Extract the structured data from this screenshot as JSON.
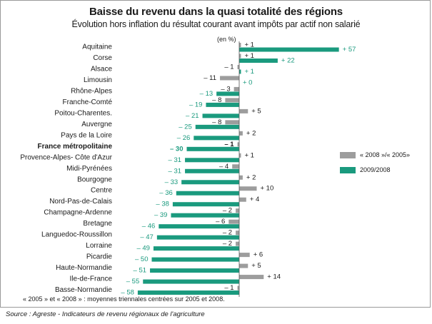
{
  "colors": {
    "series_2008_2005": "#9d9d9d",
    "series_2009_2008": "#1a9a7e",
    "text": "#1a1a1a"
  },
  "header": {
    "title": "Baisse du revenu dans la quasi totalité des régions",
    "subtitle": "Évolution hors inflation du résultat courant avant impôts par actif non salarié",
    "unit": "(en %)"
  },
  "footnote": "« 2005 » et « 2008 » : moyennes triennales centrées sur 2005 et 2008.",
  "source": "Source : Agreste - Indicateurs de revenu régionaux de l'agriculture",
  "chart_data": {
    "type": "bar",
    "orientation": "horizontal",
    "title": "Baisse du revenu dans la quasi totalité des régions",
    "subtitle": "Évolution hors inflation du résultat courant avant impôts par actif non salarié",
    "unit": "(en %)",
    "legend_position": "right",
    "categories": [
      "Aquitaine",
      "Corse",
      "Alsace",
      "Limousin",
      "Rhône-Alpes",
      "Franche-Comté",
      "Poitou-Charentes.",
      "Auvergne",
      "Pays de la Loire",
      "France métropolitaine",
      "Provence-Alpes- Côte d'Azur",
      "Midi-Pyrénées",
      "Bourgogne",
      "Centre",
      "Nord-Pas-de-Calais",
      "Champagne-Ardenne",
      "Bretagne",
      "Languedoc-Roussillon",
      "Lorraine",
      "Picardie",
      "Haute-Normandie",
      "Ile-de-France",
      "Basse-Normandie"
    ],
    "series": [
      {
        "name": "« 2008 »/« 2005»",
        "values": [
          1,
          1,
          -1,
          -11,
          -3,
          -8,
          5,
          -8,
          2,
          -1,
          1,
          -4,
          2,
          10,
          4,
          -2,
          -6,
          -2,
          -2,
          6,
          5,
          14,
          -1
        ],
        "labels": [
          "+ 1",
          "+ 1",
          "– 1",
          "– 11",
          "– 3",
          "– 8",
          "+ 5",
          "– 8",
          "+ 2",
          "– 1",
          "+ 1",
          "– 4",
          "+ 2",
          "+ 10",
          "+ 4",
          "– 2",
          "– 6",
          "– 2",
          "– 2",
          "+ 6",
          "+ 5",
          "+ 14",
          "– 1"
        ]
      },
      {
        "name": "2009/2008",
        "values": [
          57,
          22,
          1,
          0,
          -13,
          -19,
          -21,
          -25,
          -26,
          -30,
          -31,
          -31,
          -33,
          -36,
          -38,
          -39,
          -46,
          -47,
          -49,
          -50,
          -51,
          -55,
          -58
        ],
        "labels": [
          "+ 57",
          "+ 22",
          "+ 1",
          "+ 0",
          "– 13",
          "– 19",
          "– 21",
          "– 25",
          "– 26",
          "– 30",
          "– 31",
          "– 31",
          "– 33",
          "– 36",
          "– 38",
          "– 39",
          "– 46",
          "– 47",
          "– 49",
          "– 50",
          "– 51",
          "– 55",
          "– 58"
        ]
      }
    ],
    "highlight_category": "France métropolitaine"
  }
}
